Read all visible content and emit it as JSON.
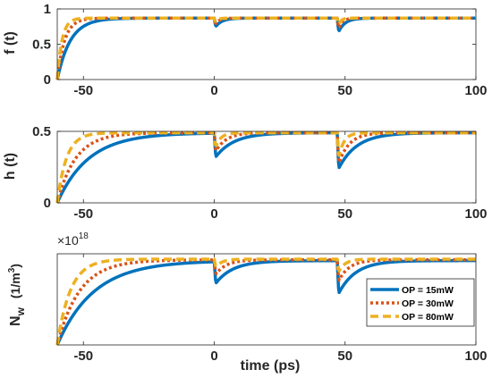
{
  "chart_data": [
    {
      "type": "line",
      "ylabel": "f (t)",
      "xlim": [
        -60,
        100
      ],
      "ylim": [
        0,
        1
      ],
      "xticks": [
        -50,
        0,
        50,
        100
      ],
      "yticks": [
        0,
        0.5,
        1
      ],
      "pulses": [
        0,
        47
      ],
      "series": [
        {
          "name": "OP = 15mW",
          "color": "#0072BD",
          "style": "solid",
          "steady": 0.87,
          "rise_tau": 5.0,
          "dips": [
            0.72,
            0.63
          ],
          "dip_tau": 2.5
        },
        {
          "name": "OP = 30mW",
          "color": "#D95319",
          "style": "dotted",
          "steady": 0.87,
          "rise_tau": 2.8,
          "dips": [
            0.75,
            0.66
          ],
          "dip_tau": 1.5
        },
        {
          "name": "OP = 80mW",
          "color": "#EDB120",
          "style": "dashed",
          "steady": 0.87,
          "rise_tau": 1.8,
          "dips": [
            0.78,
            0.7
          ],
          "dip_tau": 1.0
        }
      ]
    },
    {
      "type": "line",
      "ylabel": "h (t)",
      "xlim": [
        -60,
        100
      ],
      "ylim": [
        0,
        0.5
      ],
      "xticks": [
        -50,
        0,
        50,
        100
      ],
      "yticks": [
        0,
        0.5
      ],
      "pulses": [
        0,
        47
      ],
      "series": [
        {
          "name": "OP = 15mW",
          "color": "#0072BD",
          "style": "solid",
          "steady": 0.49,
          "rise_tau": 12.0,
          "dips": [
            0.31,
            0.22
          ],
          "dip_tau": 7.0
        },
        {
          "name": "OP = 30mW",
          "color": "#D95319",
          "style": "dotted",
          "steady": 0.49,
          "rise_tau": 7.0,
          "dips": [
            0.34,
            0.24
          ],
          "dip_tau": 4.0
        },
        {
          "name": "OP = 80mW",
          "color": "#EDB120",
          "style": "dashed",
          "steady": 0.49,
          "rise_tau": 3.5,
          "dips": [
            0.36,
            0.26
          ],
          "dip_tau": 2.0
        }
      ]
    },
    {
      "type": "line",
      "ylabel_main": "N",
      "ylabel_sub": "w",
      "ylabel_unit": "(1/m",
      "ylabel_unit_sup": "3",
      "ylabel_unit_end": ")",
      "exponent_base": "×10",
      "exponent_power": "18",
      "xlabel": "time (ps)",
      "xlim": [
        -60,
        100
      ],
      "ylim": [
        0,
        6.0
      ],
      "xticks": [
        -50,
        0,
        50,
        100
      ],
      "yticks": [],
      "pulses": [
        0,
        47
      ],
      "series": [
        {
          "name": "OP = 15mW",
          "color": "#0072BD",
          "style": "solid",
          "steady": 5.55,
          "rise_tau": 14.0,
          "dips": [
            4.0,
            3.2
          ],
          "dip_tau": 6.5
        },
        {
          "name": "OP = 30mW",
          "color": "#D95319",
          "style": "dotted",
          "steady": 5.6,
          "rise_tau": 8.5,
          "dips": [
            4.5,
            4.0
          ],
          "dip_tau": 4.0
        },
        {
          "name": "OP = 80mW",
          "color": "#EDB120",
          "style": "dashed",
          "steady": 5.65,
          "rise_tau": 5.0,
          "dips": [
            5.0,
            4.6
          ],
          "dip_tau": 2.5
        }
      ],
      "legend": {
        "position": "bottom-right",
        "entries": [
          "OP = 15mW",
          "OP = 30mW",
          "OP = 80mW"
        ]
      }
    }
  ]
}
